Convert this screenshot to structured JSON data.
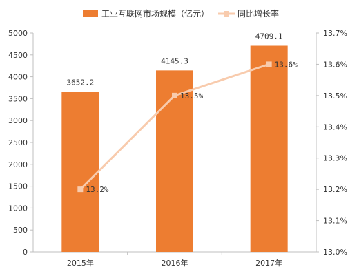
{
  "chart_data": {
    "type": "bar",
    "categories": [
      "2015年",
      "2016年",
      "2017年"
    ],
    "series": [
      {
        "name": "工业互联网市场规模（亿元）",
        "type": "bar",
        "axis": "left",
        "values": [
          3652.2,
          4145.3,
          4709.1
        ],
        "labels": [
          "3652.2",
          "4145.3",
          "4709.1"
        ]
      },
      {
        "name": "同比增长率",
        "type": "line",
        "axis": "right",
        "values": [
          13.2,
          13.5,
          13.6
        ],
        "labels": [
          "13.2%",
          "13.5%",
          "13.6%"
        ]
      }
    ],
    "y_left": {
      "range": [
        0,
        5000
      ],
      "ticks": [
        "0",
        "500",
        "1000",
        "1500",
        "2000",
        "2500",
        "3000",
        "3500",
        "4000",
        "4500",
        "5000"
      ]
    },
    "y_right": {
      "range": [
        13.0,
        13.7
      ],
      "ticks": [
        "13.0%",
        "13.1%",
        "13.2%",
        "13.3%",
        "13.4%",
        "13.5%",
        "13.6%",
        "13.7%"
      ]
    },
    "legend_position": "top",
    "grid": false
  },
  "colors": {
    "bar": "#ED7D31",
    "line": "#F8CBAD",
    "axis": "#BFBFBF",
    "text": "#333333"
  }
}
